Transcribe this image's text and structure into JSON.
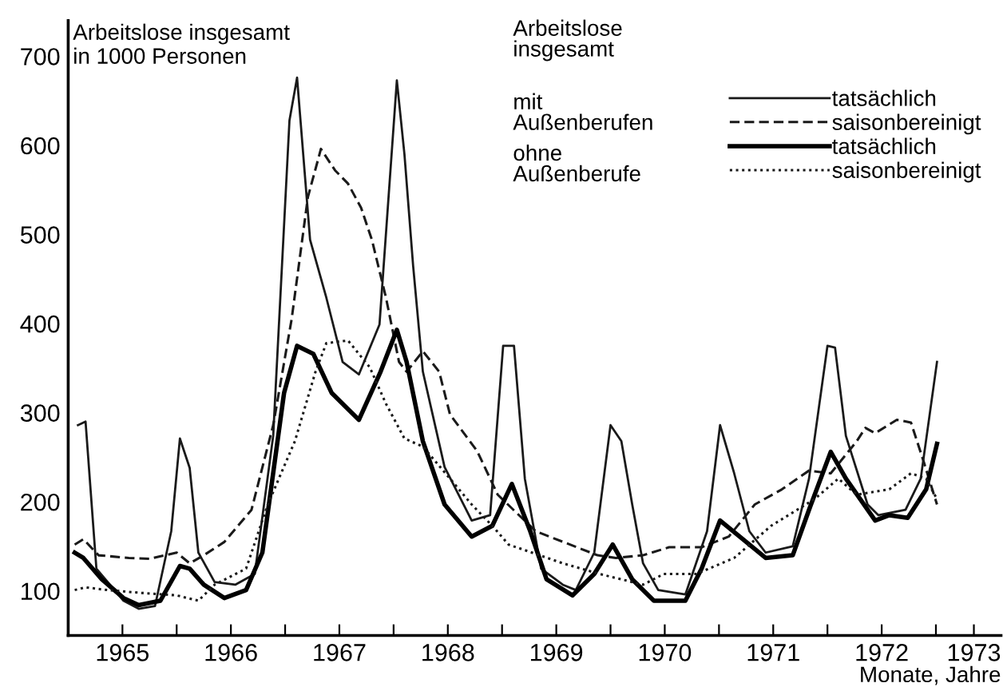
{
  "chart_data": {
    "type": "line",
    "ylabel": "Arbeitslose insgesamt\nin 1000 Personen",
    "xlabel": "Monate, Jahre",
    "legend_title": "Arbeitslose\ninsgesamt",
    "legend": "top right",
    "grid": false,
    "marker": "none",
    "annotations": [
      "mit\nAußenberufen",
      "ohne\nAußenberufe"
    ],
    "xlim": [
      1965,
      1973.6
    ],
    "ylim": [
      50,
      740
    ],
    "yticks": [
      100,
      200,
      300,
      400,
      500,
      600,
      700
    ],
    "xticks": [
      {
        "value": 1965,
        "label": null
      },
      {
        "value": 1965.5,
        "label": "1965"
      },
      {
        "value": 1966,
        "label": null
      },
      {
        "value": 1966.5,
        "label": "1966"
      },
      {
        "value": 1967,
        "label": null
      },
      {
        "value": 1967.5,
        "label": "1967"
      },
      {
        "value": 1968,
        "label": null
      },
      {
        "value": 1968.5,
        "label": "1968"
      },
      {
        "value": 1969,
        "label": null
      },
      {
        "value": 1969.5,
        "label": "1969"
      },
      {
        "value": 1970,
        "label": null
      },
      {
        "value": 1970.5,
        "label": "1970"
      },
      {
        "value": 1971,
        "label": null
      },
      {
        "value": 1971.5,
        "label": "1971"
      },
      {
        "value": 1972,
        "label": null
      },
      {
        "value": 1972.5,
        "label": "1972"
      },
      {
        "value": 1973,
        "label": null
      },
      {
        "value": 1973.35,
        "label": "1973"
      }
    ],
    "series": [
      {
        "name": "tatsächlich",
        "color": "#1a1a1a",
        "line_style": "solid",
        "x": [
          1965.09,
          1965.16,
          1965.26,
          1965.51,
          1965.65,
          1965.8,
          1965.95,
          1966.03,
          1966.12,
          1966.2,
          1966.35,
          1966.54,
          1966.72,
          1966.89,
          1967.04,
          1967.11,
          1967.23,
          1967.38,
          1967.53,
          1967.68,
          1967.87,
          1968.03,
          1968.1,
          1968.18,
          1968.27,
          1968.47,
          1968.72,
          1968.89,
          1969.01,
          1969.11,
          1969.21,
          1969.36,
          1969.56,
          1969.68,
          1969.85,
          1970.0,
          1970.1,
          1970.2,
          1970.3,
          1970.44,
          1970.69,
          1970.89,
          1971.01,
          1971.14,
          1971.28,
          1971.43,
          1971.68,
          1971.83,
          1972.0,
          1972.07,
          1972.17,
          1972.37,
          1972.47,
          1972.72,
          1972.86,
          1973.01
        ],
        "values": [
          286,
          290,
          125,
          89,
          80,
          83,
          167,
          271,
          238,
          143,
          110,
          107,
          119,
          274,
          628,
          676,
          494,
          429,
          357,
          343,
          399,
          673,
          590,
          465,
          346,
          239,
          179,
          185,
          375,
          375,
          226,
          125,
          107,
          101,
          143,
          286,
          268,
          197,
          131,
          101,
          96,
          167,
          286,
          232,
          167,
          143,
          150,
          226,
          375,
          373,
          274,
          197,
          185,
          191,
          226,
          357
        ]
      },
      {
        "name": "saisonbereinigt",
        "color": "#1a1a1a",
        "line_style": "dashed",
        "x": [
          1965.06,
          1965.14,
          1965.28,
          1965.56,
          1965.75,
          1966.0,
          1966.12,
          1966.25,
          1966.44,
          1966.69,
          1966.89,
          1967.06,
          1967.21,
          1967.33,
          1967.46,
          1967.58,
          1967.7,
          1967.8,
          1967.93,
          1968.05,
          1968.12,
          1968.27,
          1968.42,
          1968.52,
          1968.77,
          1968.96,
          1969.31,
          1969.88,
          1970.05,
          1970.3,
          1970.54,
          1970.84,
          1971.09,
          1971.33,
          1971.58,
          1971.83,
          1972.03,
          1972.27,
          1972.35,
          1972.44,
          1972.64,
          1972.77,
          1972.89,
          1973.01
        ],
        "values": [
          152,
          158,
          140,
          137,
          136,
          143,
          131,
          140,
          155,
          191,
          286,
          405,
          542,
          596,
          572,
          557,
          530,
          494,
          429,
          357,
          346,
          369,
          346,
          298,
          257,
          208,
          167,
          140,
          137,
          140,
          149,
          149,
          161,
          197,
          214,
          235,
          232,
          268,
          283,
          277,
          292,
          289,
          244,
          197
        ]
      },
      {
        "name": "tatsächlich",
        "color": "#000000",
        "line_style": "solid",
        "x": [
          1965.06,
          1965.14,
          1965.31,
          1965.51,
          1965.65,
          1965.85,
          1966.03,
          1966.12,
          1966.25,
          1966.44,
          1966.64,
          1966.79,
          1966.99,
          1967.11,
          1967.26,
          1967.43,
          1967.68,
          1967.88,
          1968.03,
          1968.12,
          1968.27,
          1968.47,
          1968.72,
          1968.91,
          1969.09,
          1969.26,
          1969.41,
          1969.65,
          1969.85,
          1970.02,
          1970.2,
          1970.4,
          1970.69,
          1970.84,
          1971.01,
          1971.19,
          1971.43,
          1971.68,
          1971.83,
          1972.03,
          1972.17,
          1972.44,
          1972.57,
          1972.74,
          1972.91,
          1973.01
        ],
        "values": [
          143,
          137,
          113,
          92,
          84,
          89,
          128,
          125,
          107,
          92,
          101,
          143,
          322,
          375,
          366,
          322,
          292,
          346,
          393,
          357,
          268,
          197,
          161,
          173,
          220,
          167,
          113,
          95,
          119,
          152,
          113,
          89,
          89,
          125,
          179,
          161,
          137,
          140,
          191,
          256,
          226,
          179,
          185,
          182,
          214,
          265
        ]
      },
      {
        "name": "saisonbereinigt",
        "color": "#1a1a1a",
        "line_style": "dotted",
        "x": [
          1965.06,
          1965.16,
          1965.36,
          1965.65,
          1966.0,
          1966.2,
          1966.35,
          1966.64,
          1966.84,
          1967.09,
          1967.28,
          1967.38,
          1967.58,
          1967.78,
          1967.93,
          1968.1,
          1968.27,
          1968.52,
          1968.72,
          1968.91,
          1969.06,
          1969.56,
          1969.9,
          1970.3,
          1970.49,
          1970.79,
          1971.14,
          1971.48,
          1971.88,
          1972.1,
          1972.27,
          1972.57,
          1972.77,
          1972.91,
          1973.01
        ],
        "values": [
          101,
          104,
          101,
          98,
          95,
          89,
          107,
          125,
          197,
          268,
          346,
          378,
          381,
          351,
          310,
          271,
          262,
          226,
          197,
          173,
          152,
          131,
          119,
          107,
          119,
          119,
          137,
          173,
          203,
          226,
          208,
          214,
          232,
          226,
          203
        ]
      }
    ]
  }
}
